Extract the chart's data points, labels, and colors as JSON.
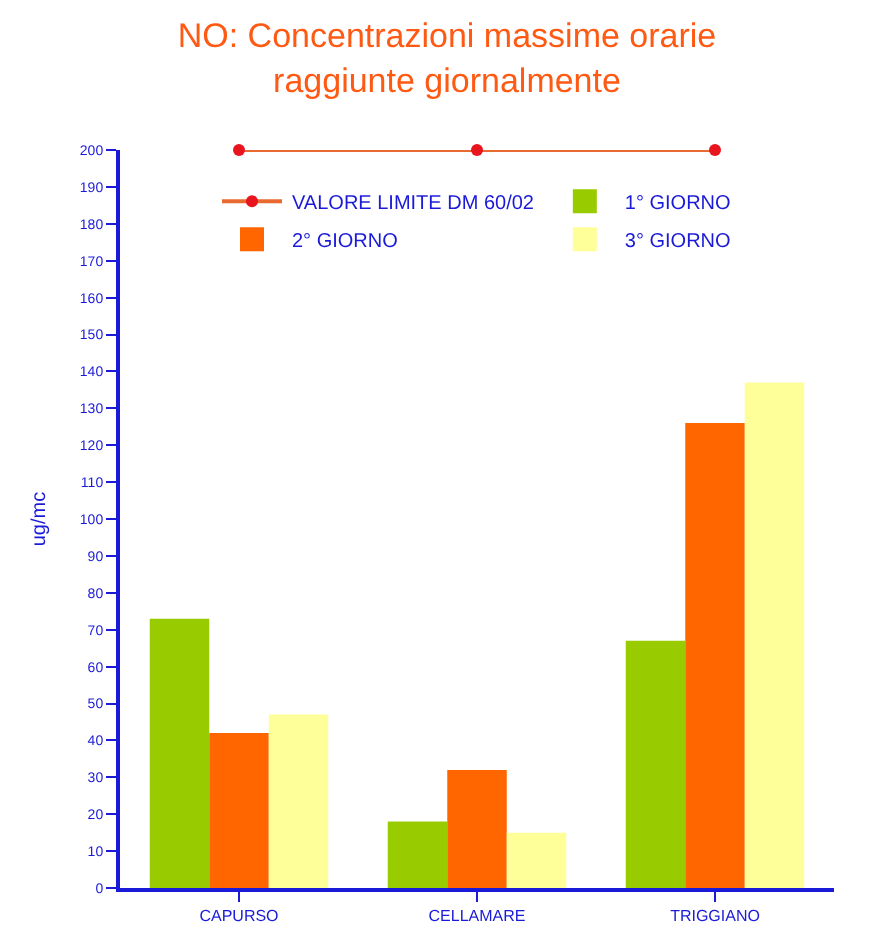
{
  "chart_data": {
    "type": "bar",
    "title": "NO: Concentrazioni massime orarie\nraggiunte giornalmente",
    "ylabel": "ug/mc",
    "categories": [
      "CAPURSO",
      "CELLAMARE",
      "TRIGGIANO"
    ],
    "series": [
      {
        "name": "VALORE LIMITE DM 60/02",
        "type": "line",
        "marker": "circle",
        "color": "#e86a30",
        "values": [
          200,
          200,
          200
        ]
      },
      {
        "name": "1° GIORNO",
        "color": "#99cc00",
        "values": [
          73,
          18,
          67
        ]
      },
      {
        "name": "2° GIORNO",
        "color": "#ff6600",
        "values": [
          42,
          32,
          126
        ]
      },
      {
        "name": "3° GIORNO",
        "color": "#ffff99",
        "values": [
          47,
          15,
          137
        ]
      }
    ],
    "ylim": [
      0,
      200
    ],
    "yticks": [
      0,
      10,
      20,
      30,
      40,
      50,
      60,
      70,
      80,
      90,
      100,
      110,
      120,
      130,
      140,
      150,
      160,
      170,
      180,
      190,
      200
    ],
    "legend": "top"
  }
}
